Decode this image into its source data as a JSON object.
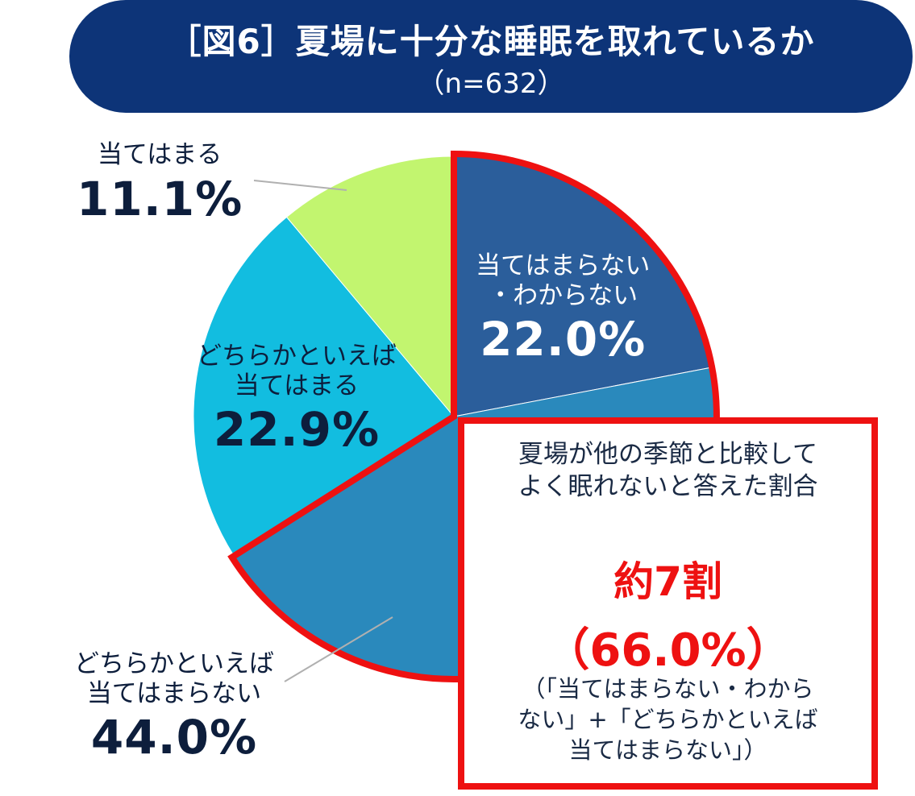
{
  "title": {
    "main": "［図6］夏場に十分な睡眠を取れているか",
    "sub": "（n=632）"
  },
  "chart_data": {
    "type": "pie",
    "start_angle_deg": 0,
    "direction": "clockwise",
    "slices": [
      {
        "name": "当てはまらない・わからない",
        "label_lines": [
          "当てはまらない",
          "・わからない"
        ],
        "value": 22.0,
        "value_label": "22.0%",
        "color": "#2b5e9b"
      },
      {
        "name": "どちらかといえば当てはまらない",
        "label_lines": [
          "どちらかといえば",
          "当てはまらない"
        ],
        "value": 44.0,
        "value_label": "44.0%",
        "color": "#2a89bc"
      },
      {
        "name": "どちらかといえば当てはまる",
        "label_lines": [
          "どちらかといえば",
          "当てはまる"
        ],
        "value": 22.9,
        "value_label": "22.9%",
        "color": "#12bde0"
      },
      {
        "name": "当てはまる",
        "label_lines": [
          "当てはまる"
        ],
        "value": 11.1,
        "value_label": "11.1%",
        "color": "#c2f56f"
      }
    ],
    "highlight_color": "#ee1111"
  },
  "callout": {
    "desc_line1": "夏場が他の季節と比較して",
    "desc_line2": "よく眠れないと答えた割合",
    "headline": "約7割",
    "percent": "（66.0%）",
    "note_line1": "（「当てはまらない・わから",
    "note_line2": "ない」+「どちらかといえば",
    "note_line3": "当てはまらない」）"
  }
}
